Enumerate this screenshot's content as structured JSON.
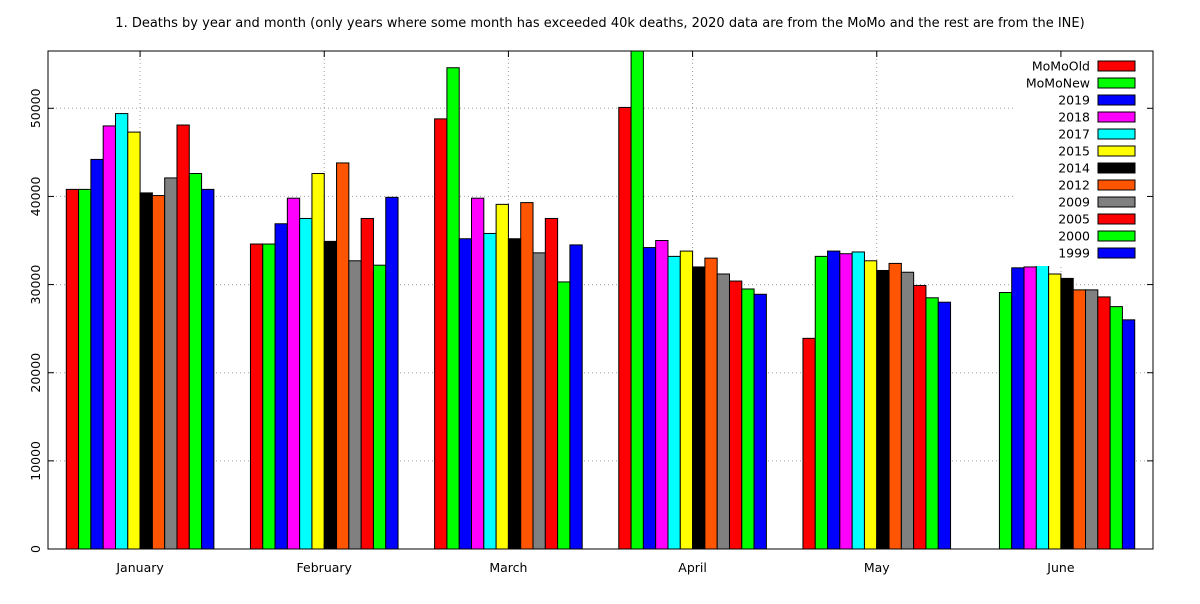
{
  "chart_data": {
    "type": "bar",
    "title": "1. Deaths by year and month (only years where some month has exceeded 40k deaths, 2020 data are from the MoMo and the rest are from the INE)",
    "xlabel": "",
    "ylabel": "",
    "categories": [
      "January",
      "February",
      "March",
      "April",
      "May",
      "June"
    ],
    "ylim": [
      0,
      56500
    ],
    "yticks": [
      0,
      10000,
      20000,
      30000,
      40000,
      50000
    ],
    "ytick_labels": [
      "0",
      "10000",
      "20000",
      "30000",
      "40000",
      "50000"
    ],
    "grid": true,
    "legend_position": "top-right",
    "series": [
      {
        "name": "MoMoOld",
        "color": "#ff0000",
        "values": [
          40800,
          34600,
          48800,
          50100,
          23900,
          null
        ]
      },
      {
        "name": "MoMoNew",
        "color": "#00ff00",
        "values": [
          40800,
          34600,
          54600,
          56500,
          33200,
          29100
        ]
      },
      {
        "name": "2019",
        "color": "#0000ff",
        "values": [
          44200,
          36900,
          35200,
          34200,
          33800,
          31900
        ]
      },
      {
        "name": "2018",
        "color": "#ff00ff",
        "values": [
          48000,
          39800,
          39800,
          35000,
          33500,
          32000
        ]
      },
      {
        "name": "2017",
        "color": "#00ffff",
        "values": [
          49400,
          37500,
          35800,
          33200,
          33700,
          32400
        ]
      },
      {
        "name": "2015",
        "color": "#ffff00",
        "values": [
          47300,
          42600,
          39100,
          33800,
          32700,
          31200
        ]
      },
      {
        "name": "2014",
        "color": "#000000",
        "values": [
          40400,
          34900,
          35200,
          32000,
          31600,
          30700
        ]
      },
      {
        "name": "2012",
        "color": "#ff5500",
        "values": [
          40100,
          43800,
          39300,
          33000,
          32400,
          29400
        ]
      },
      {
        "name": "2009",
        "color": "#808080",
        "values": [
          42100,
          32700,
          33600,
          31200,
          31400,
          29400
        ]
      },
      {
        "name": "2005",
        "color": "#ff0000",
        "values": [
          48100,
          37500,
          37500,
          30400,
          29900,
          28600
        ]
      },
      {
        "name": "2000",
        "color": "#00ff00",
        "values": [
          42600,
          32200,
          30300,
          29500,
          28500,
          27500
        ]
      },
      {
        "name": "1999",
        "color": "#0000ff",
        "values": [
          40800,
          39900,
          34500,
          28900,
          28000,
          26000
        ]
      }
    ]
  }
}
